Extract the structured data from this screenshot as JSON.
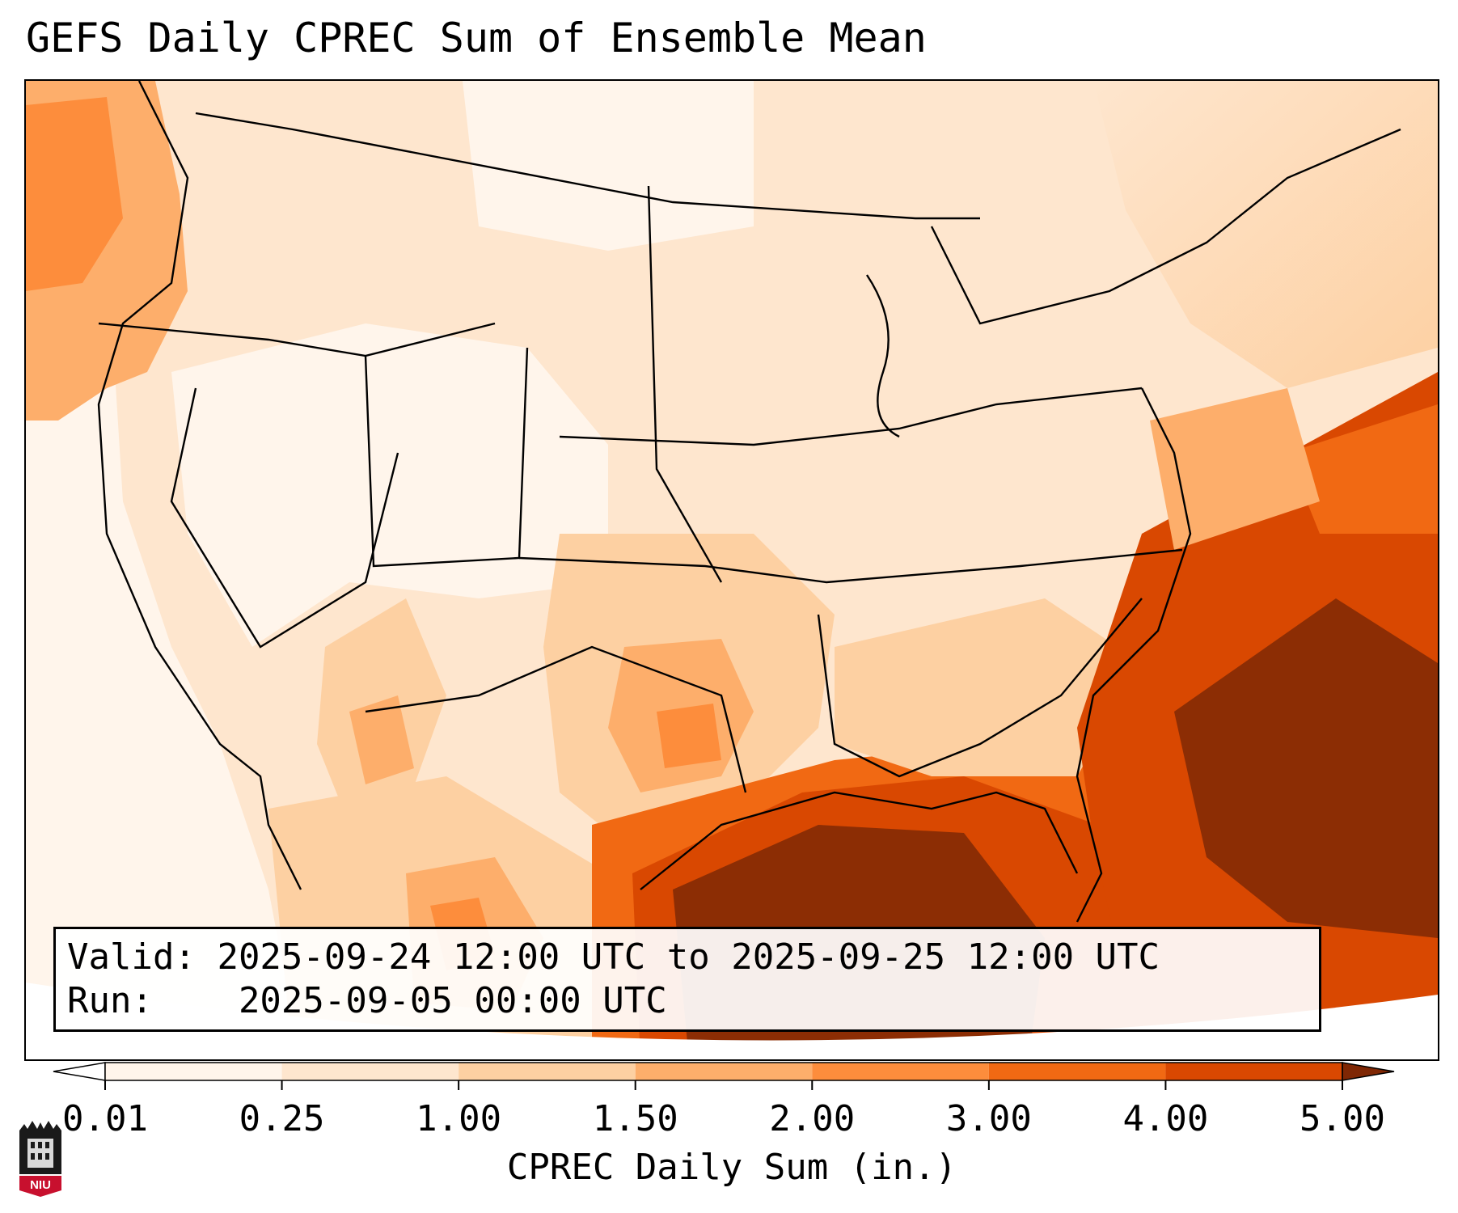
{
  "title": "GEFS Daily CPREC Sum of Ensemble Mean",
  "info": {
    "valid_label": "Valid:",
    "valid_value": "2025-09-24 12:00 UTC to 2025-09-25 12:00 UTC",
    "run_label": "Run:",
    "run_value": "2025-09-05 00:00 UTC"
  },
  "colorbar": {
    "label": "CPREC Daily Sum (in.)",
    "ticks": [
      "0.01",
      "0.25",
      "1.00",
      "1.50",
      "2.00",
      "3.00",
      "4.00",
      "5.00"
    ],
    "colors": [
      "#fff5eb",
      "#fee6ce",
      "#fdd0a2",
      "#fdae6b",
      "#fd8d3c",
      "#f16913",
      "#d94801",
      "#8c2d04"
    ],
    "under_color": "#ffffff",
    "over_color": "#7f2704",
    "extend": "both"
  },
  "logo": {
    "text": "NIU",
    "name": "niu-logo-icon"
  }
}
